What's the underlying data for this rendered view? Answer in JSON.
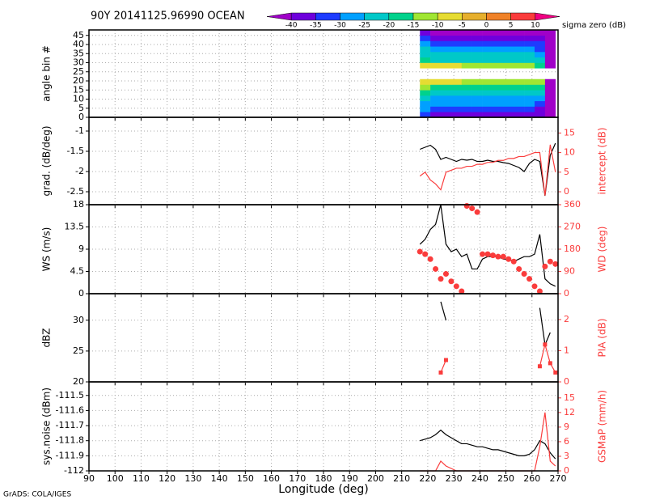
{
  "title": "90Y 20141125.96990 OCEAN",
  "footer": "GrADS: COLA/IGES",
  "x_axis": {
    "label": "Longitude (deg)",
    "lim": [
      90,
      270
    ],
    "ticks": [
      90,
      100,
      110,
      120,
      130,
      140,
      150,
      160,
      170,
      180,
      190,
      200,
      210,
      220,
      230,
      240,
      250,
      260,
      270
    ]
  },
  "colorbar": {
    "label": "sigma zero (dB)",
    "levels": [
      -40,
      -35,
      -30,
      -25,
      -20,
      -15,
      -10,
      -5,
      0,
      5,
      10
    ],
    "colors": [
      "#a000c8",
      "#6e00dc",
      "#1e3cff",
      "#00a0ff",
      "#00c8c8",
      "#00d28c",
      "#a0e632",
      "#e6dc32",
      "#e6af2d",
      "#f08228",
      "#fa3c3c",
      "#f00082"
    ]
  },
  "chart_data": [
    {
      "type": "heatmap",
      "ylabel": "angle bin #",
      "ylim": [
        0,
        48
      ],
      "yticks": [
        0,
        5,
        10,
        15,
        20,
        25,
        30,
        35,
        40,
        45
      ],
      "x": [
        217,
        221,
        225,
        229,
        233,
        237,
        241,
        245,
        249,
        253,
        257,
        261,
        265,
        269
      ],
      "y": [
        0,
        3,
        6,
        9,
        12,
        15,
        18,
        21,
        24,
        27,
        30,
        33,
        36,
        39,
        42,
        45,
        48
      ],
      "values": [
        [
          -34,
          -38,
          -38,
          -38,
          -38,
          -38,
          -38,
          -38,
          -38,
          -38,
          -38,
          -40,
          -42
        ],
        [
          -30,
          -34,
          -34,
          -34,
          -34,
          -34,
          -34,
          -34,
          -34,
          -34,
          -34,
          -36,
          -42
        ],
        [
          -26,
          -30,
          -30,
          -30,
          -30,
          -30,
          -30,
          -30,
          -30,
          -30,
          -30,
          -32,
          -42
        ],
        [
          -22,
          -26,
          -26,
          -26,
          -26,
          -26,
          -26,
          -26,
          -26,
          -26,
          -26,
          -28,
          -42
        ],
        [
          -18,
          -22,
          -22,
          -22,
          -22,
          -22,
          -22,
          -22,
          -22,
          -22,
          -22,
          -24,
          -42
        ],
        [
          -13,
          -17,
          -17,
          -17,
          -17,
          -17,
          -17,
          -17,
          -17,
          -17,
          -17,
          -19,
          -42
        ],
        [
          -7,
          -9,
          -9,
          -9,
          -12,
          -12,
          -12,
          -12,
          -12,
          -12,
          -12,
          -14,
          -42
        ],
        [
          null,
          null,
          null,
          null,
          null,
          null,
          null,
          null,
          null,
          null,
          null,
          null,
          null
        ],
        [
          null,
          null,
          null,
          null,
          null,
          null,
          null,
          null,
          null,
          null,
          null,
          null,
          null
        ],
        [
          -8,
          -10,
          -10,
          -10,
          -14,
          -14,
          -14,
          -14,
          -14,
          -14,
          -14,
          -16,
          -42
        ],
        [
          -17,
          -21,
          -21,
          -21,
          -21,
          -21,
          -21,
          -21,
          -21,
          -21,
          -21,
          -23,
          -42
        ],
        [
          -21,
          -25,
          -25,
          -25,
          -25,
          -25,
          -25,
          -25,
          -25,
          -25,
          -25,
          -27,
          -42
        ],
        [
          -25,
          -29,
          -29,
          -29,
          -29,
          -29,
          -29,
          -29,
          -29,
          -29,
          -29,
          -31,
          -42
        ],
        [
          -29,
          -33,
          -33,
          -33,
          -33,
          -33,
          -33,
          -33,
          -33,
          -33,
          -33,
          -35,
          -42
        ],
        [
          -33,
          -37,
          -37,
          -37,
          -37,
          -37,
          -37,
          -37,
          -37,
          -37,
          -37,
          -39,
          -42
        ],
        [
          -37,
          -41,
          -41,
          -41,
          -41,
          -41,
          -41,
          -41,
          -41,
          -41,
          -41,
          -42,
          -42
        ]
      ]
    },
    {
      "type": "line",
      "ylabel": "grad. (dB/deg)",
      "y2label": "intercept (dB)",
      "ylim": [
        -2.82,
        -0.66
      ],
      "yticks": [
        -2.5,
        -2,
        -1.5,
        -1
      ],
      "y2lim": [
        -3.3,
        19
      ],
      "y2ticks": [
        0,
        5,
        10,
        15
      ],
      "x": [
        217,
        219,
        221,
        223,
        225,
        227,
        229,
        231,
        233,
        235,
        237,
        239,
        241,
        243,
        245,
        247,
        249,
        251,
        253,
        255,
        257,
        259,
        261,
        263,
        265,
        267,
        269
      ],
      "series": [
        {
          "color": "#000000",
          "line": true,
          "values": [
            -1.45,
            -1.4,
            -1.35,
            -1.45,
            -1.7,
            -1.65,
            -1.7,
            -1.75,
            -1.7,
            -1.72,
            -1.7,
            -1.75,
            -1.75,
            -1.72,
            -1.75,
            -1.75,
            -1.78,
            -1.8,
            -1.85,
            -1.9,
            -2.0,
            -1.8,
            -1.7,
            -1.75,
            -2.6,
            -1.6,
            -1.3
          ]
        },
        {
          "color": "#fa3c3c",
          "line": true,
          "axis": "y2",
          "values": [
            4,
            5,
            3,
            2,
            0.5,
            5,
            5.5,
            6,
            6,
            6.5,
            6.5,
            7,
            7,
            7.5,
            7.5,
            8,
            8,
            8.5,
            8.5,
            9,
            9,
            9.5,
            10,
            10,
            -1,
            12,
            5
          ]
        }
      ]
    },
    {
      "type": "line",
      "ylabel": "WS (m/s)",
      "y2label": "WD (deg)",
      "ylim": [
        0,
        18
      ],
      "yticks": [
        0,
        4.5,
        9,
        13.5,
        18
      ],
      "y2lim": [
        0,
        360
      ],
      "y2ticks": [
        0,
        90,
        180,
        270,
        360
      ],
      "x": [
        217,
        219,
        221,
        223,
        225,
        227,
        229,
        231,
        233,
        235,
        237,
        239,
        241,
        243,
        245,
        247,
        249,
        251,
        253,
        255,
        257,
        259,
        261,
        263,
        265,
        267,
        269
      ],
      "series": [
        {
          "color": "#000000",
          "line": true,
          "values": [
            10,
            11,
            13,
            14,
            18,
            10,
            8.5,
            9,
            7.5,
            8,
            5,
            5,
            7,
            7.5,
            7.5,
            7.5,
            7,
            7,
            6.5,
            7,
            7.5,
            7.5,
            8,
            12,
            3,
            2,
            1.5
          ]
        },
        {
          "color": "#fa3c3c",
          "line": false,
          "marker": "circle",
          "axis": "y2",
          "values": [
            170,
            160,
            140,
            100,
            60,
            80,
            50,
            30,
            10,
            355,
            345,
            330,
            160,
            160,
            155,
            150,
            150,
            140,
            130,
            100,
            80,
            60,
            30,
            10,
            110,
            130,
            120
          ]
        }
      ]
    },
    {
      "type": "line",
      "ylabel": "dBZ",
      "y2label": "PIA (dB)",
      "ylim": [
        20,
        34.3
      ],
      "yticks": [
        20,
        25,
        30
      ],
      "y2lim": [
        0,
        2.83
      ],
      "y2ticks": [
        0,
        1,
        2
      ],
      "x": [
        217,
        219,
        221,
        223,
        225,
        227,
        229,
        231,
        233,
        235,
        237,
        239,
        241,
        243,
        245,
        247,
        249,
        251,
        253,
        255,
        257,
        259,
        261,
        263,
        265,
        267,
        269
      ],
      "series": [
        {
          "color": "#000000",
          "line": true,
          "values": [
            null,
            null,
            null,
            null,
            33,
            30,
            null,
            null,
            null,
            null,
            null,
            null,
            null,
            null,
            null,
            null,
            null,
            null,
            null,
            null,
            null,
            null,
            null,
            32,
            26,
            28,
            null
          ]
        },
        {
          "color": "#fa3c3c",
          "line": true,
          "marker": "square",
          "axis": "y2",
          "values": [
            null,
            null,
            null,
            null,
            0.3,
            0.7,
            null,
            null,
            null,
            null,
            null,
            null,
            null,
            null,
            null,
            null,
            null,
            null,
            null,
            null,
            null,
            null,
            null,
            0.5,
            1.2,
            0.6,
            0.3
          ]
        }
      ]
    },
    {
      "type": "line",
      "ylabel": "sys.noise (dBm)",
      "y2label": "GSMaP (mm/h)",
      "ylim": [
        -112,
        -111.41
      ],
      "yticks": [
        -112,
        -111.9,
        -111.8,
        -111.7,
        -111.6,
        -111.5
      ],
      "y2lim": [
        0,
        18.3
      ],
      "y2ticks": [
        0,
        3,
        6,
        9,
        12,
        15
      ],
      "x": [
        217,
        219,
        221,
        223,
        225,
        227,
        229,
        231,
        233,
        235,
        237,
        239,
        241,
        243,
        245,
        247,
        249,
        251,
        253,
        255,
        257,
        259,
        261,
        263,
        265,
        267,
        269
      ],
      "series": [
        {
          "color": "#000000",
          "line": true,
          "values": [
            -111.8,
            -111.79,
            -111.78,
            -111.76,
            -111.73,
            -111.76,
            -111.78,
            -111.8,
            -111.82,
            -111.82,
            -111.83,
            -111.84,
            -111.84,
            -111.85,
            -111.86,
            -111.86,
            -111.87,
            -111.88,
            -111.89,
            -111.9,
            -111.9,
            -111.89,
            -111.86,
            -111.8,
            -111.82,
            -111.88,
            -111.92
          ]
        },
        {
          "color": "#fa3c3c",
          "line": true,
          "axis": "y2",
          "values": [
            0,
            0,
            0,
            0,
            2,
            1,
            0.5,
            0,
            0,
            0,
            0,
            0,
            0,
            0,
            0,
            0,
            0,
            0,
            0,
            0,
            0,
            0,
            0,
            5,
            12,
            2,
            1
          ]
        }
      ]
    }
  ]
}
